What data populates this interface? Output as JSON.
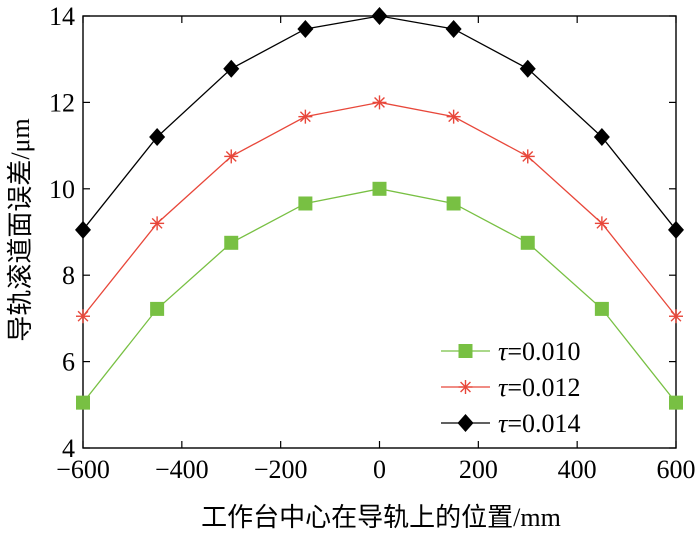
{
  "chart_data": {
    "type": "line",
    "title": "",
    "xlabel": "工作台中心在导轨上的位置/mm",
    "ylabel": "导轨滚道面误差/μm",
    "xlim": [
      -600,
      600
    ],
    "ylim": [
      4,
      14
    ],
    "xticks": [
      -600,
      -400,
      -200,
      0,
      200,
      400,
      600
    ],
    "yticks": [
      4,
      6,
      8,
      10,
      12,
      14
    ],
    "xtick_labels": [
      "−600",
      "−400",
      "−200",
      "0",
      "200",
      "400",
      "600"
    ],
    "ytick_labels": [
      "4",
      "6",
      "8",
      "10",
      "12",
      "14"
    ],
    "grid": false,
    "legend_position": "bottom-right",
    "x": [
      -600,
      -450,
      -300,
      -150,
      0,
      150,
      300,
      450,
      600
    ],
    "series": [
      {
        "name": "τ=0.010",
        "name_symbol": "τ",
        "name_rest": "=0.010",
        "color": "#78c043",
        "marker": "square",
        "values": [
          5.05,
          7.22,
          8.75,
          9.66,
          10.0,
          9.66,
          8.75,
          7.22,
          5.05
        ]
      },
      {
        "name": "τ=0.012",
        "name_symbol": "τ",
        "name_rest": "=0.012",
        "color": "#e8473a",
        "marker": "asterisk",
        "values": [
          7.05,
          9.2,
          10.75,
          11.67,
          12.0,
          11.67,
          10.75,
          9.2,
          7.05
        ]
      },
      {
        "name": "τ=0.014",
        "name_symbol": "τ",
        "name_rest": "=0.014",
        "color": "#000000",
        "marker": "diamond",
        "values": [
          9.05,
          11.2,
          12.78,
          13.7,
          14.0,
          13.7,
          12.78,
          11.2,
          9.05
        ]
      }
    ]
  }
}
